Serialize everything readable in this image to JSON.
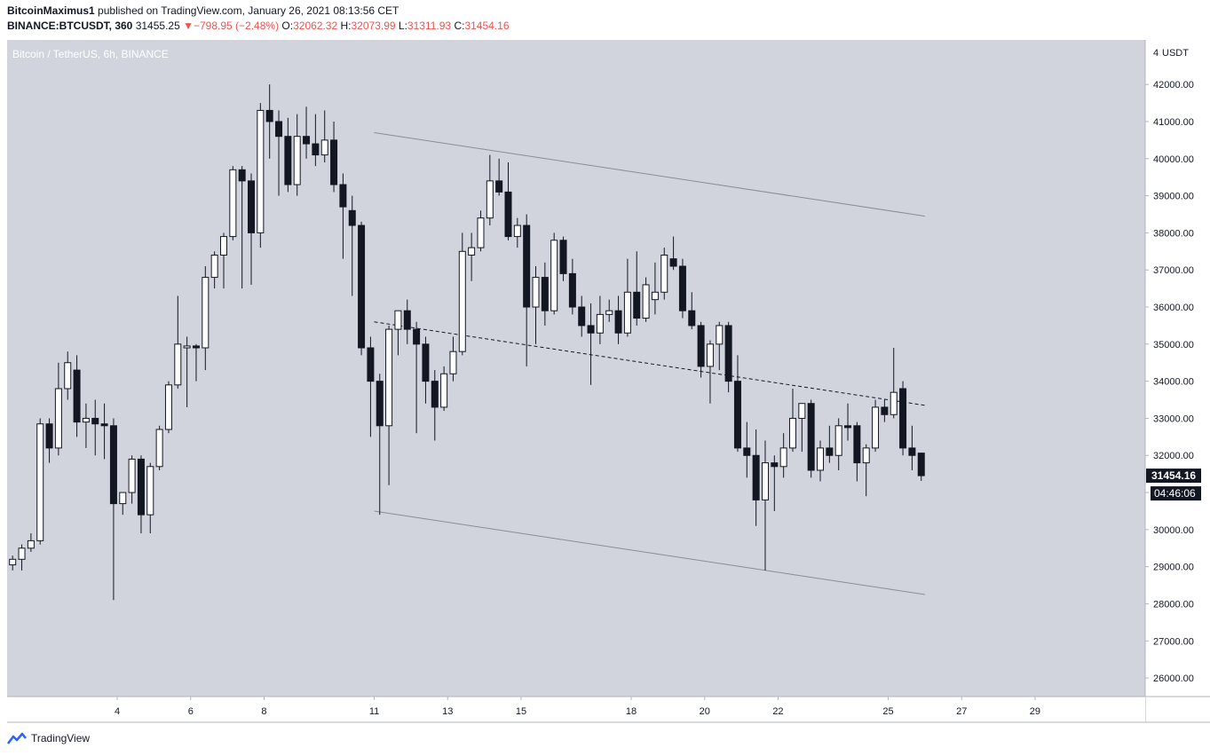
{
  "header": {
    "author": "BitcoinMaximus1",
    "published_text": "published on TradingView.com, January 26, 2021 08:13:56 CET",
    "symbol": "BINANCE:BTCUSDT, 360",
    "last": "31455.25",
    "change_arrow": "▼",
    "change": "−798.95 (−2.48%)",
    "o_label": "O:",
    "o_value": "32062.32",
    "h_label": "H:",
    "h_value": "32073.99",
    "l_label": "L:",
    "l_value": "31311.93",
    "c_label": "C:",
    "c_value": "31454.16"
  },
  "footer": {
    "brand": "TradingView"
  },
  "colors": {
    "plot_bg": "#d1d4dc",
    "bull_body": "#ffffff",
    "bear_body": "#131722",
    "negative": "#ef5350",
    "price_label_bg": "#131722"
  },
  "chart_data": {
    "type": "candlestick",
    "watermark": "Bitcoin / TetherUS, 6h, BINANCE",
    "y_axis_unit": "USDT",
    "y_axis_top_tick": "4",
    "ylim": [
      25500,
      43200
    ],
    "y_ticks": [
      26000,
      27000,
      28000,
      29000,
      30000,
      31000,
      32000,
      33000,
      34000,
      35000,
      36000,
      37000,
      38000,
      39000,
      40000,
      41000,
      42000
    ],
    "y_tick_labels": [
      "26000.00",
      "27000.00",
      "28000.00",
      "29000.00",
      "30000.00",
      "31000.00",
      "32000.00",
      "33000.00",
      "34000.00",
      "35000.00",
      "36000.00",
      "37000.00",
      "38000.00",
      "39000.00",
      "40000.00",
      "41000.00",
      "42000.00"
    ],
    "x_domain": [
      1,
      32
    ],
    "x_ticks": [
      4,
      6,
      8,
      11,
      13,
      15,
      18,
      20,
      22,
      25,
      27,
      29
    ],
    "x_tick_labels": [
      "4",
      "6",
      "8",
      "11",
      "13",
      "15",
      "18",
      "20",
      "22",
      "25",
      "27",
      "29"
    ],
    "last_price_label": "31454.16",
    "last_price": 31454,
    "countdown_label": "04:46:06",
    "candles": [
      {
        "x": 1.15,
        "o": 29050,
        "h": 29300,
        "l": 28900,
        "c": 29200
      },
      {
        "x": 1.4,
        "o": 29200,
        "h": 29600,
        "l": 28900,
        "c": 29500
      },
      {
        "x": 1.65,
        "o": 29500,
        "h": 29900,
        "l": 29400,
        "c": 29700
      },
      {
        "x": 1.9,
        "o": 29700,
        "h": 33000,
        "l": 29600,
        "c": 32850
      },
      {
        "x": 2.15,
        "o": 32850,
        "h": 33000,
        "l": 31800,
        "c": 32200
      },
      {
        "x": 2.4,
        "o": 32200,
        "h": 34500,
        "l": 32000,
        "c": 33800
      },
      {
        "x": 2.65,
        "o": 33800,
        "h": 34800,
        "l": 33500,
        "c": 34500
      },
      {
        "x": 2.9,
        "o": 34300,
        "h": 34700,
        "l": 32500,
        "c": 32900
      },
      {
        "x": 3.15,
        "o": 32900,
        "h": 33400,
        "l": 32200,
        "c": 33000
      },
      {
        "x": 3.4,
        "o": 33000,
        "h": 33500,
        "l": 32000,
        "c": 32850
      },
      {
        "x": 3.65,
        "o": 32850,
        "h": 33400,
        "l": 31900,
        "c": 32800
      },
      {
        "x": 3.9,
        "o": 32800,
        "h": 33000,
        "l": 28100,
        "c": 30700
      },
      {
        "x": 4.15,
        "o": 30700,
        "h": 31000,
        "l": 30400,
        "c": 31000
      },
      {
        "x": 4.4,
        "o": 31000,
        "h": 32000,
        "l": 30700,
        "c": 31900
      },
      {
        "x": 4.65,
        "o": 31900,
        "h": 32000,
        "l": 29900,
        "c": 30400
      },
      {
        "x": 4.9,
        "o": 30400,
        "h": 31800,
        "l": 29900,
        "c": 31700
      },
      {
        "x": 5.15,
        "o": 31700,
        "h": 32800,
        "l": 31600,
        "c": 32700
      },
      {
        "x": 5.4,
        "o": 32700,
        "h": 34000,
        "l": 32600,
        "c": 33900
      },
      {
        "x": 5.65,
        "o": 33900,
        "h": 36300,
        "l": 33800,
        "c": 35000
      },
      {
        "x": 5.9,
        "o": 34900,
        "h": 35200,
        "l": 33300,
        "c": 34950
      },
      {
        "x": 6.15,
        "o": 34950,
        "h": 35000,
        "l": 34000,
        "c": 34900
      },
      {
        "x": 6.4,
        "o": 34900,
        "h": 37100,
        "l": 34300,
        "c": 36800
      },
      {
        "x": 6.65,
        "o": 36800,
        "h": 37500,
        "l": 36500,
        "c": 37400
      },
      {
        "x": 6.9,
        "o": 37400,
        "h": 38000,
        "l": 36500,
        "c": 37900
      },
      {
        "x": 7.15,
        "o": 37900,
        "h": 39800,
        "l": 37800,
        "c": 39700
      },
      {
        "x": 7.4,
        "o": 39700,
        "h": 39800,
        "l": 36500,
        "c": 39400
      },
      {
        "x": 7.65,
        "o": 39400,
        "h": 39600,
        "l": 36600,
        "c": 38000
      },
      {
        "x": 7.9,
        "o": 38000,
        "h": 41500,
        "l": 37600,
        "c": 41300
      },
      {
        "x": 8.15,
        "o": 41300,
        "h": 42000,
        "l": 40000,
        "c": 41000
      },
      {
        "x": 8.4,
        "o": 41000,
        "h": 41300,
        "l": 39000,
        "c": 40600
      },
      {
        "x": 8.65,
        "o": 40600,
        "h": 41100,
        "l": 39100,
        "c": 39300
      },
      {
        "x": 8.9,
        "o": 39300,
        "h": 41200,
        "l": 39000,
        "c": 40600
      },
      {
        "x": 9.15,
        "o": 40600,
        "h": 41400,
        "l": 40000,
        "c": 40400
      },
      {
        "x": 9.4,
        "o": 40400,
        "h": 41200,
        "l": 39800,
        "c": 40100
      },
      {
        "x": 9.65,
        "o": 40100,
        "h": 41300,
        "l": 39900,
        "c": 40500
      },
      {
        "x": 9.9,
        "o": 40500,
        "h": 41000,
        "l": 39100,
        "c": 39300
      },
      {
        "x": 10.15,
        "o": 39300,
        "h": 39600,
        "l": 37300,
        "c": 38700
      },
      {
        "x": 10.4,
        "o": 38600,
        "h": 39000,
        "l": 36300,
        "c": 38200
      },
      {
        "x": 10.65,
        "o": 38200,
        "h": 38300,
        "l": 34700,
        "c": 34900
      },
      {
        "x": 10.9,
        "o": 34900,
        "h": 35200,
        "l": 32500,
        "c": 34000
      },
      {
        "x": 11.15,
        "o": 34000,
        "h": 34200,
        "l": 30400,
        "c": 32800
      },
      {
        "x": 11.4,
        "o": 32800,
        "h": 35500,
        "l": 31200,
        "c": 35400
      },
      {
        "x": 11.65,
        "o": 35400,
        "h": 35900,
        "l": 34700,
        "c": 35900
      },
      {
        "x": 11.9,
        "o": 35900,
        "h": 36200,
        "l": 35000,
        "c": 35400
      },
      {
        "x": 12.15,
        "o": 35400,
        "h": 35600,
        "l": 32600,
        "c": 35000
      },
      {
        "x": 12.4,
        "o": 35000,
        "h": 35200,
        "l": 33400,
        "c": 34000
      },
      {
        "x": 12.65,
        "o": 34000,
        "h": 34300,
        "l": 32400,
        "c": 33300
      },
      {
        "x": 12.9,
        "o": 33300,
        "h": 34400,
        "l": 33200,
        "c": 34200
      },
      {
        "x": 13.15,
        "o": 34200,
        "h": 35200,
        "l": 34000,
        "c": 34800
      },
      {
        "x": 13.4,
        "o": 34800,
        "h": 38000,
        "l": 34700,
        "c": 37500
      },
      {
        "x": 13.65,
        "o": 37400,
        "h": 38000,
        "l": 36700,
        "c": 37600
      },
      {
        "x": 13.9,
        "o": 37600,
        "h": 38600,
        "l": 37500,
        "c": 38400
      },
      {
        "x": 14.15,
        "o": 38400,
        "h": 40100,
        "l": 38200,
        "c": 39400
      },
      {
        "x": 14.4,
        "o": 39400,
        "h": 40000,
        "l": 39000,
        "c": 39100
      },
      {
        "x": 14.65,
        "o": 39100,
        "h": 39900,
        "l": 37800,
        "c": 37900
      },
      {
        "x": 14.9,
        "o": 37900,
        "h": 38400,
        "l": 37600,
        "c": 38200
      },
      {
        "x": 15.15,
        "o": 38200,
        "h": 38500,
        "l": 34400,
        "c": 36000
      },
      {
        "x": 15.4,
        "o": 36000,
        "h": 37100,
        "l": 35000,
        "c": 36800
      },
      {
        "x": 15.65,
        "o": 36800,
        "h": 37200,
        "l": 35500,
        "c": 35900
      },
      {
        "x": 15.9,
        "o": 35900,
        "h": 38000,
        "l": 35800,
        "c": 37800
      },
      {
        "x": 16.15,
        "o": 37800,
        "h": 37900,
        "l": 36700,
        "c": 36900
      },
      {
        "x": 16.4,
        "o": 36900,
        "h": 37300,
        "l": 35800,
        "c": 36000
      },
      {
        "x": 16.65,
        "o": 36000,
        "h": 36300,
        "l": 35200,
        "c": 35500
      },
      {
        "x": 16.9,
        "o": 35500,
        "h": 36100,
        "l": 33900,
        "c": 35300
      },
      {
        "x": 17.15,
        "o": 35300,
        "h": 36300,
        "l": 35000,
        "c": 35800
      },
      {
        "x": 17.4,
        "o": 35800,
        "h": 36200,
        "l": 35600,
        "c": 35900
      },
      {
        "x": 17.65,
        "o": 35900,
        "h": 36300,
        "l": 35000,
        "c": 35300
      },
      {
        "x": 17.9,
        "o": 35300,
        "h": 37300,
        "l": 35200,
        "c": 36400
      },
      {
        "x": 18.15,
        "o": 36400,
        "h": 37500,
        "l": 35500,
        "c": 35700
      },
      {
        "x": 18.4,
        "o": 35700,
        "h": 36800,
        "l": 35600,
        "c": 36600
      },
      {
        "x": 18.65,
        "o": 36200,
        "h": 37200,
        "l": 35800,
        "c": 36400
      },
      {
        "x": 18.9,
        "o": 36400,
        "h": 37600,
        "l": 36200,
        "c": 37400
      },
      {
        "x": 19.15,
        "o": 37300,
        "h": 37900,
        "l": 37000,
        "c": 37100
      },
      {
        "x": 19.4,
        "o": 37100,
        "h": 37300,
        "l": 35700,
        "c": 35900
      },
      {
        "x": 19.65,
        "o": 35900,
        "h": 36400,
        "l": 35400,
        "c": 35500
      },
      {
        "x": 19.9,
        "o": 35500,
        "h": 35600,
        "l": 34100,
        "c": 34400
      },
      {
        "x": 20.15,
        "o": 34400,
        "h": 35100,
        "l": 33400,
        "c": 35000
      },
      {
        "x": 20.4,
        "o": 35000,
        "h": 35600,
        "l": 34300,
        "c": 35500
      },
      {
        "x": 20.65,
        "o": 35500,
        "h": 35600,
        "l": 33700,
        "c": 34000
      },
      {
        "x": 20.9,
        "o": 34000,
        "h": 34700,
        "l": 32100,
        "c": 32200
      },
      {
        "x": 21.15,
        "o": 32200,
        "h": 32900,
        "l": 31400,
        "c": 32000
      },
      {
        "x": 21.4,
        "o": 32000,
        "h": 32700,
        "l": 30100,
        "c": 30800
      },
      {
        "x": 21.65,
        "o": 30800,
        "h": 32400,
        "l": 28900,
        "c": 31800
      },
      {
        "x": 21.9,
        "o": 31800,
        "h": 32000,
        "l": 30500,
        "c": 31700
      },
      {
        "x": 22.15,
        "o": 31700,
        "h": 32600,
        "l": 31400,
        "c": 32200
      },
      {
        "x": 22.4,
        "o": 32200,
        "h": 33800,
        "l": 32100,
        "c": 33000
      },
      {
        "x": 22.65,
        "o": 33000,
        "h": 33400,
        "l": 32100,
        "c": 33400
      },
      {
        "x": 22.9,
        "o": 33400,
        "h": 33500,
        "l": 31400,
        "c": 31600
      },
      {
        "x": 23.15,
        "o": 31600,
        "h": 32400,
        "l": 31300,
        "c": 32200
      },
      {
        "x": 23.4,
        "o": 32200,
        "h": 32800,
        "l": 31800,
        "c": 32000
      },
      {
        "x": 23.65,
        "o": 32000,
        "h": 33000,
        "l": 31600,
        "c": 32800
      },
      {
        "x": 23.9,
        "o": 32800,
        "h": 33400,
        "l": 32400,
        "c": 32750
      },
      {
        "x": 24.15,
        "o": 32800,
        "h": 32900,
        "l": 31300,
        "c": 31800
      },
      {
        "x": 24.4,
        "o": 31800,
        "h": 32300,
        "l": 30900,
        "c": 32200
      },
      {
        "x": 24.65,
        "o": 32200,
        "h": 33500,
        "l": 32100,
        "c": 33300
      },
      {
        "x": 24.9,
        "o": 33300,
        "h": 33500,
        "l": 32900,
        "c": 33100
      },
      {
        "x": 25.15,
        "o": 33100,
        "h": 34900,
        "l": 33000,
        "c": 33700
      },
      {
        "x": 25.4,
        "o": 33800,
        "h": 34000,
        "l": 32000,
        "c": 32200
      },
      {
        "x": 25.65,
        "o": 32200,
        "h": 32800,
        "l": 31600,
        "c": 32000
      },
      {
        "x": 25.9,
        "o": 32062,
        "h": 32074,
        "l": 31312,
        "c": 31454
      }
    ],
    "annotations": [
      {
        "kind": "solid",
        "x1": 11.0,
        "y1": 40700,
        "x2": 26.0,
        "y2": 38450
      },
      {
        "kind": "solid",
        "x1": 11.0,
        "y1": 30500,
        "x2": 26.0,
        "y2": 28250
      },
      {
        "kind": "dashed",
        "x1": 11.0,
        "y1": 35600,
        "x2": 26.0,
        "y2": 33350
      }
    ]
  }
}
